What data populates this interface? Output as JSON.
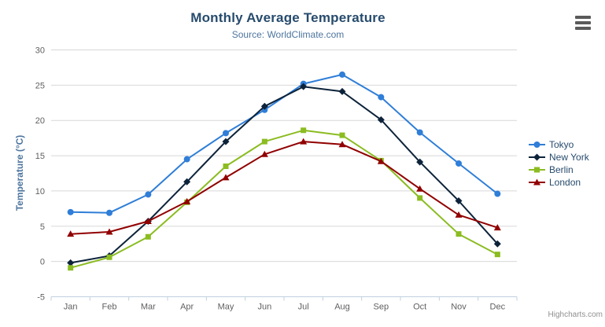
{
  "chart_data": {
    "type": "line",
    "title": "Monthly Average Temperature",
    "subtitle": "Source: WorldClimate.com",
    "xlabel": "",
    "ylabel": "Temperature (°C)",
    "categories": [
      "Jan",
      "Feb",
      "Mar",
      "Apr",
      "May",
      "Jun",
      "Jul",
      "Aug",
      "Sep",
      "Oct",
      "Nov",
      "Dec"
    ],
    "series": [
      {
        "name": "Tokyo",
        "color": "#2f7ed8",
        "marker": "circle",
        "values": [
          7.0,
          6.9,
          9.5,
          14.5,
          18.2,
          21.5,
          25.2,
          26.5,
          23.3,
          18.3,
          13.9,
          9.6
        ]
      },
      {
        "name": "New York",
        "color": "#0d233a",
        "marker": "diamond",
        "values": [
          -0.2,
          0.8,
          5.7,
          11.3,
          17.0,
          22.0,
          24.8,
          24.1,
          20.1,
          14.1,
          8.6,
          2.5
        ]
      },
      {
        "name": "Berlin",
        "color": "#8bbc21",
        "marker": "square",
        "values": [
          -0.9,
          0.6,
          3.5,
          8.4,
          13.5,
          17.0,
          18.6,
          17.9,
          14.3,
          9.0,
          3.9,
          1.0
        ]
      },
      {
        "name": "London",
        "color": "#910000",
        "marker": "triangle",
        "values": [
          3.9,
          4.2,
          5.7,
          8.5,
          11.9,
          15.2,
          17.0,
          16.6,
          14.2,
          10.3,
          6.6,
          4.8
        ]
      }
    ],
    "ylim": [
      -5,
      30
    ],
    "yticks": [
      -5,
      0,
      5,
      10,
      15,
      20,
      25,
      30
    ],
    "grid": true,
    "grid_color": "#d8d8d8",
    "axis_line_color": "#c0d0e0",
    "legend_position": "right",
    "credit": "Highcharts.com"
  },
  "export_menu": {
    "icon": "hamburger-icon"
  }
}
